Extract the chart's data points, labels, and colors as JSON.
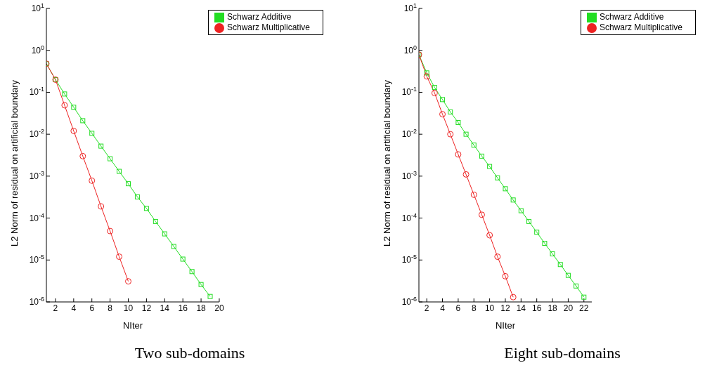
{
  "chart_data": [
    {
      "type": "line",
      "title": "Two sub-domains",
      "xlabel": "NIter",
      "ylabel": "L2 Norm of residual on artificial boundary",
      "log": "y",
      "grid": false,
      "legend": "top right",
      "line_style": "solid",
      "xlim": [
        1,
        20
      ],
      "xticks": [
        2,
        4,
        6,
        8,
        10,
        12,
        14,
        16,
        18,
        20
      ],
      "ylim": [
        1e-06,
        10
      ],
      "yticks": [
        {
          "value": 1e-06,
          "label": "10$^{-6}$"
        },
        {
          "value": 1e-05,
          "label": "10$^{-5}$"
        },
        {
          "value": 0.0001,
          "label": "10$^{-4}$"
        },
        {
          "value": 0.001,
          "label": "10$^{-3}$"
        },
        {
          "value": 0.01,
          "label": "10$^{-2}$"
        },
        {
          "value": 0.1,
          "label": "10$^{-1}$"
        },
        {
          "value": 1,
          "label": "10$^{0}$"
        },
        {
          "value": 10,
          "label": "10$^{1}$"
        }
      ],
      "series": [
        {
          "name": "Schwarz Additive",
          "color": "#22dd22",
          "marker": "square",
          "x": [
            1,
            2,
            3,
            4,
            5,
            6,
            7,
            8,
            9,
            10,
            11,
            12,
            13,
            14,
            15,
            16,
            17,
            18,
            19
          ],
          "values": [
            0.48,
            0.2,
            0.091,
            0.044,
            0.021,
            0.0105,
            0.0052,
            0.0026,
            0.0013,
            0.00066,
            0.00032,
            0.00017,
            8.3e-05,
            4.2e-05,
            2.1e-05,
            1.05e-05,
            5.3e-06,
            2.6e-06,
            1.35e-06
          ]
        },
        {
          "name": "Schwarz Multiplicative",
          "color": "#ee2222",
          "marker": "circle",
          "x": [
            1,
            2,
            3,
            4,
            5,
            6,
            7,
            8,
            9,
            10
          ],
          "values": [
            0.48,
            0.2,
            0.049,
            0.012,
            0.003,
            0.00078,
            0.00019,
            4.9e-05,
            1.2e-05,
            3.1e-06
          ]
        }
      ]
    },
    {
      "type": "line",
      "title": "Eight sub-domains",
      "xlabel": "NIter",
      "ylabel": "L2 Norm of residual  on artificial boundary",
      "log": "y",
      "grid": false,
      "legend": "top right",
      "line_style": "solid",
      "xlim": [
        1,
        23
      ],
      "xticks": [
        2,
        4,
        6,
        8,
        10,
        12,
        14,
        16,
        18,
        20,
        22
      ],
      "ylim": [
        1e-06,
        10
      ],
      "yticks": [
        {
          "value": 1e-06,
          "label": "10$^{-6}$"
        },
        {
          "value": 1e-05,
          "label": "10$^{-5}$"
        },
        {
          "value": 0.0001,
          "label": "10$^{-4}$"
        },
        {
          "value": 0.001,
          "label": "10$^{-3}$"
        },
        {
          "value": 0.01,
          "label": "10$^{-2}$"
        },
        {
          "value": 0.1,
          "label": "10$^{-1}$"
        },
        {
          "value": 1,
          "label": "10$^{0}$"
        },
        {
          "value": 10,
          "label": "10$^{1}$"
        }
      ],
      "series": [
        {
          "name": "Schwarz Additive",
          "color": "#22dd22",
          "marker": "square",
          "x": [
            1,
            2,
            3,
            4,
            5,
            6,
            7,
            8,
            9,
            10,
            11,
            12,
            13,
            14,
            15,
            16,
            17,
            18,
            19,
            20,
            21,
            22
          ],
          "values": [
            0.79,
            0.29,
            0.13,
            0.067,
            0.034,
            0.019,
            0.01,
            0.0055,
            0.003,
            0.0017,
            0.00091,
            0.0005,
            0.00027,
            0.00015,
            8.3e-05,
            4.6e-05,
            2.5e-05,
            1.4e-05,
            7.8e-06,
            4.3e-06,
            2.4e-06,
            1.3e-06
          ]
        },
        {
          "name": "Schwarz Multiplicative",
          "color": "#ee2222",
          "marker": "circle",
          "x": [
            1,
            2,
            3,
            4,
            5,
            6,
            7,
            8,
            9,
            10,
            11,
            12,
            13
          ],
          "values": [
            0.79,
            0.24,
            0.096,
            0.03,
            0.01,
            0.0033,
            0.0011,
            0.00036,
            0.00012,
            3.9e-05,
            1.2e-05,
            4.1e-06,
            1.3e-06
          ]
        }
      ]
    }
  ]
}
